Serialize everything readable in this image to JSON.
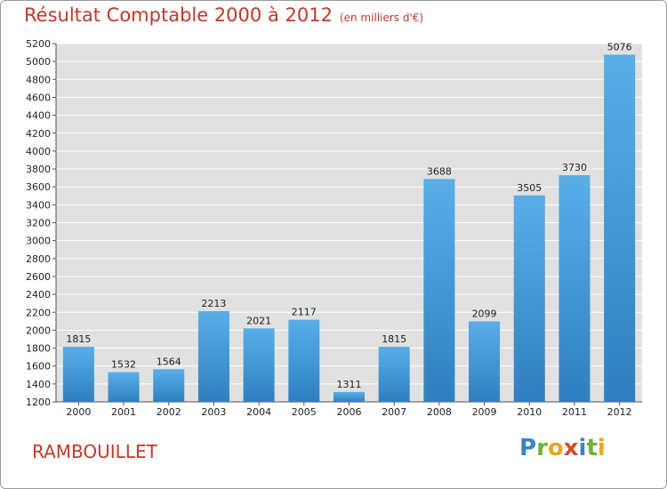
{
  "header": {
    "title": "Résultat Comptable 2000 à 2012",
    "subtitle": "(en milliers d'€)"
  },
  "footer": {
    "city": "RAMBOUILLET",
    "logo_text": "Proxiti"
  },
  "colors": {
    "bar_light": "#5aaee8",
    "bar_dark": "#2f7fc0",
    "plot_background": "#e1e1e1",
    "title_color": "#c0392b"
  },
  "chart_data": {
    "type": "bar",
    "title": "Résultat Comptable 2000 à 2012",
    "subtitle": "(en milliers d'€)",
    "xlabel": "",
    "ylabel": "",
    "categories": [
      "2000",
      "2001",
      "2002",
      "2003",
      "2004",
      "2005",
      "2006",
      "2007",
      "2008",
      "2009",
      "2010",
      "2011",
      "2012"
    ],
    "values": [
      1815,
      1532,
      1564,
      2213,
      2021,
      2117,
      1311,
      1815,
      3688,
      2099,
      3505,
      3730,
      5076
    ],
    "ylim": [
      1200,
      5200
    ],
    "yticks": [
      1200,
      1400,
      1600,
      1800,
      2000,
      2200,
      2400,
      2600,
      2800,
      3000,
      3200,
      3400,
      3600,
      3800,
      4000,
      4200,
      4400,
      4600,
      4800,
      5000,
      5200
    ],
    "grid": true,
    "data_labels": true
  }
}
